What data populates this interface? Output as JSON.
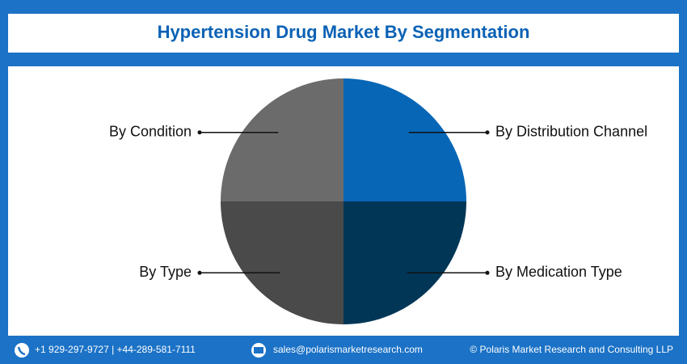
{
  "chart_data": {
    "type": "pie",
    "title": "Hypertension Drug Market By Segmentation",
    "categories": [
      "By Distribution Channel",
      "By Medication Type",
      "By Type",
      "By Condition"
    ],
    "values": [
      25,
      25,
      25,
      25
    ],
    "colors": [
      "#0866b6",
      "#023656",
      "#4a4a4a",
      "#6b6b6b"
    ]
  },
  "footer": {
    "phone": "+1 929-297-9727 | +44-289-581-7111",
    "email": "sales@polarismarketresearch.com",
    "copyright": "© Polaris Market Research and Consulting LLP"
  }
}
